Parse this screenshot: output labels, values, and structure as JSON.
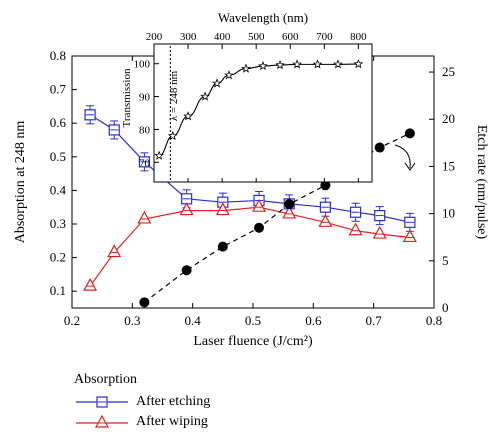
{
  "chart_data": {
    "type": "line",
    "title": "",
    "xlabel": "Laser fluence (J/cm²)",
    "ylabel": "Absorption at 248 nm",
    "ylabel_right": "Etch rate (nm/pulse)",
    "xlim": [
      0.2,
      0.8
    ],
    "ylim": [
      0.05,
      0.8
    ],
    "ylim_right": [
      0,
      26.7
    ],
    "x_ticks": [
      "0.2",
      "0.3",
      "0.4",
      "0.5",
      "0.6",
      "0.7",
      "0.8"
    ],
    "y_ticks": [
      "0.1",
      "0.2",
      "0.3",
      "0.4",
      "0.5",
      "0.6",
      "0.7",
      "0.8"
    ],
    "y_ticks_right": [
      "0",
      "5",
      "10",
      "15",
      "20",
      "25"
    ],
    "series": [
      {
        "name": "After etching",
        "color": "#2b2bd6",
        "marker": "square",
        "axis": "left",
        "x": [
          0.23,
          0.27,
          0.32,
          0.39,
          0.45,
          0.51,
          0.56,
          0.62,
          0.67,
          0.71,
          0.76
        ],
        "y": [
          0.625,
          0.58,
          0.485,
          0.375,
          0.365,
          0.37,
          0.36,
          0.35,
          0.335,
          0.325,
          0.305
        ]
      },
      {
        "name": "After wiping",
        "color": "#e02020",
        "marker": "triangle",
        "axis": "left",
        "x": [
          0.23,
          0.27,
          0.32,
          0.39,
          0.45,
          0.51,
          0.56,
          0.62,
          0.67,
          0.71,
          0.76
        ],
        "y": [
          0.115,
          0.215,
          0.315,
          0.34,
          0.34,
          0.35,
          0.33,
          0.305,
          0.28,
          0.27,
          0.26
        ]
      },
      {
        "color": "#000000",
        "marker": "circle",
        "axis": "right",
        "x": [
          0.32,
          0.39,
          0.45,
          0.51,
          0.56,
          0.62,
          0.67,
          0.71,
          0.76
        ],
        "y": [
          0.6,
          4.0,
          6.5,
          8.5,
          11.0,
          13.0,
          15.5,
          17.0,
          18.5
        ]
      }
    ],
    "inset": {
      "xlabel": "Wavelength (nm)",
      "ylabel": "Transmission",
      "xlim": [
        200,
        840
      ],
      "ylim": [
        64,
        106
      ],
      "x_ticks": [
        "200",
        "300",
        "400",
        "500",
        "600",
        "700",
        "800"
      ],
      "y_ticks": [
        "70",
        "80",
        "90",
        "100"
      ],
      "annotation": "λ = 248 nm",
      "marker_line_x": 248,
      "series": [
        {
          "x": [
            215,
            255,
            300,
            350,
            385,
            420,
            470,
            520,
            570,
            620,
            680,
            740,
            800
          ],
          "y": [
            72,
            78,
            84,
            90,
            94,
            96.5,
            98.5,
            99.3,
            99.6,
            99.8,
            99.8,
            99.8,
            99.9
          ]
        }
      ]
    }
  },
  "legend": {
    "title": "Absorption",
    "items": [
      {
        "label": "After etching"
      },
      {
        "label": "After wiping"
      }
    ]
  }
}
